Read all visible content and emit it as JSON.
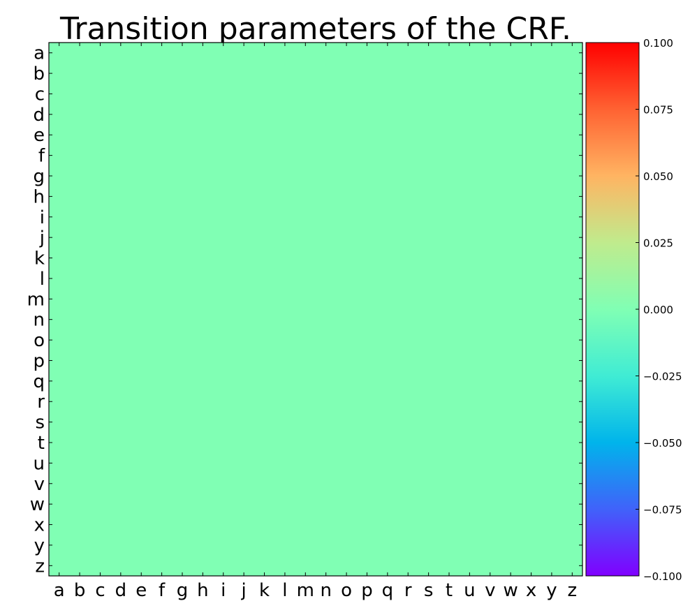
{
  "chart_data": {
    "type": "heatmap",
    "title": "Transition parameters of the CRF.",
    "x_labels": [
      "a",
      "b",
      "c",
      "d",
      "e",
      "f",
      "g",
      "h",
      "i",
      "j",
      "k",
      "l",
      "m",
      "n",
      "o",
      "p",
      "q",
      "r",
      "s",
      "t",
      "u",
      "v",
      "w",
      "x",
      "y",
      "z"
    ],
    "y_labels": [
      "a",
      "b",
      "c",
      "d",
      "e",
      "f",
      "g",
      "h",
      "i",
      "j",
      "k",
      "l",
      "m",
      "n",
      "o",
      "p",
      "q",
      "r",
      "s",
      "t",
      "u",
      "v",
      "w",
      "x",
      "y",
      "z"
    ],
    "fill_value": 0.0,
    "colormap": "rainbow",
    "colorbar": {
      "vmin": -0.1,
      "vmax": 0.1,
      "ticks": [
        0.1,
        0.075,
        0.05,
        0.025,
        0.0,
        -0.025,
        -0.05,
        -0.075,
        -0.1
      ],
      "tick_labels": [
        "0.100",
        "0.075",
        "0.050",
        "0.025",
        "0.000",
        "−0.025",
        "−0.050",
        "−0.075",
        "−0.100"
      ]
    },
    "grid": false,
    "legend": "colorbar-right"
  }
}
